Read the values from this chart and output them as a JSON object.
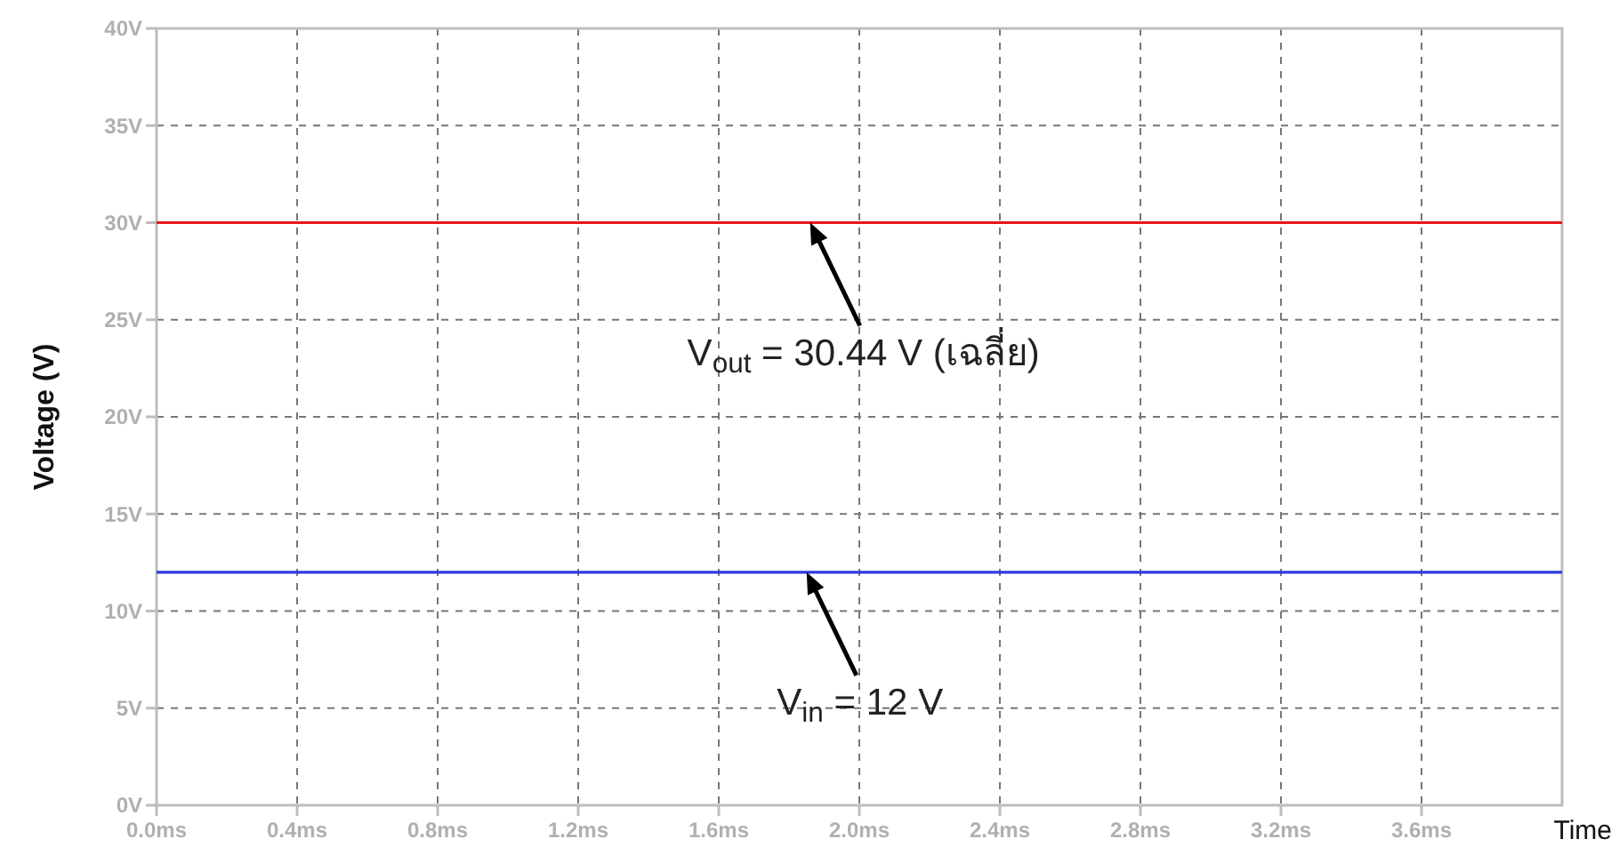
{
  "chart_data": {
    "type": "line",
    "xlabel": "Time",
    "ylabel": "Voltage (V)",
    "x": [
      0,
      4
    ],
    "series": [
      {
        "color": "#e8141c",
        "values": [
          30,
          30
        ]
      },
      {
        "color": "#2b3be0",
        "values": [
          12,
          12
        ]
      }
    ],
    "xlim": [
      0,
      4
    ],
    "xticks": [
      {
        "value": 0,
        "label": "0.0ms"
      },
      {
        "value": 0.4,
        "label": "0.4ms"
      },
      {
        "value": 0.8,
        "label": "0.8ms"
      },
      {
        "value": 1.2,
        "label": "1.2ms"
      },
      {
        "value": 1.6,
        "label": "1.6ms"
      },
      {
        "value": 2,
        "label": "2.0ms"
      },
      {
        "value": 2.4,
        "label": "2.4ms"
      },
      {
        "value": 2.8,
        "label": "2.8ms"
      },
      {
        "value": 3.2,
        "label": "3.2ms"
      },
      {
        "value": 3.6,
        "label": "3.6ms"
      }
    ],
    "ylim": [
      0,
      40
    ],
    "yticks": [
      {
        "value": 0,
        "label": "0V"
      },
      {
        "value": 5,
        "label": "5V"
      },
      {
        "value": 10,
        "label": "10V"
      },
      {
        "value": 15,
        "label": "15V"
      },
      {
        "value": 20,
        "label": "20V"
      },
      {
        "value": 25,
        "label": "25V"
      },
      {
        "value": 30,
        "label": "30V"
      },
      {
        "value": 35,
        "label": "35V"
      },
      {
        "value": 40,
        "label": "40V"
      }
    ],
    "grid": true,
    "marker": "none",
    "line_style": "solid",
    "annotations": [
      {
        "text": "V$_{out}$ = 30.44 V  (เฉลี่ย)",
        "x": 1.86,
        "y": 30
      },
      {
        "text": "V$_{in}$ = 12 V",
        "x": 1.85,
        "y": 12
      }
    ]
  }
}
